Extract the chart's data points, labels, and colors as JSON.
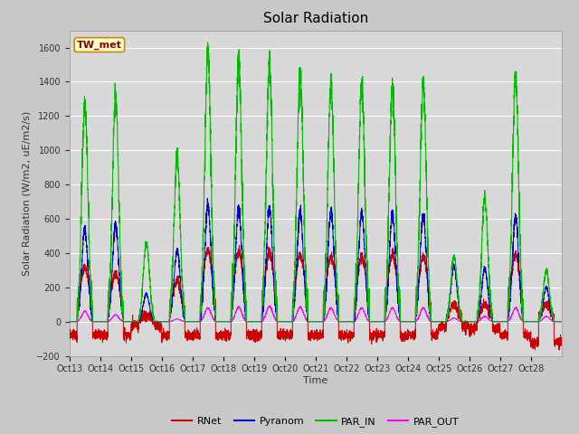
{
  "title": "Solar Radiation",
  "ylabel": "Solar Radiation (W/m2, uE/m2/s)",
  "xlabel": "Time",
  "ylim": [
    -200,
    1700
  ],
  "yticks": [
    -200,
    0,
    200,
    400,
    600,
    800,
    1000,
    1200,
    1400,
    1600
  ],
  "xtick_labels": [
    "Oct 13",
    "Oct 14",
    "Oct 15",
    "Oct 16",
    "Oct 17",
    "Oct 18",
    "Oct 19",
    "Oct 20",
    "Oct 21",
    "Oct 22",
    "Oct 23",
    "Oct 24",
    "Oct 25",
    "Oct 26",
    "Oct 27",
    "Oct 28"
  ],
  "legend_labels": [
    "RNet",
    "Pyranom",
    "PAR_IN",
    "PAR_OUT"
  ],
  "colors": {
    "RNet": "#cc0000",
    "Pyranom": "#0000cc",
    "PAR_IN": "#00bb00",
    "PAR_OUT": "#ff00ff"
  },
  "annotation_text": "TW_met",
  "annotation_bg": "#ffffcc",
  "annotation_border": "#cc8800",
  "fig_bg": "#c8c8c8",
  "plot_bg": "#d8d8d8",
  "grid_color": "#ffffff",
  "title_fontsize": 11,
  "label_fontsize": 8,
  "tick_fontsize": 7,
  "par_in_peaks": [
    1270,
    1310,
    460,
    960,
    1580,
    1530,
    1500,
    1460,
    1390,
    1390,
    1360,
    1390,
    380,
    720,
    1430,
    300
  ],
  "pyranom_peaks": [
    540,
    570,
    160,
    420,
    680,
    660,
    660,
    640,
    650,
    640,
    630,
    620,
    320,
    310,
    610,
    200
  ],
  "rnet_peaks": [
    320,
    280,
    40,
    240,
    420,
    410,
    400,
    390,
    380,
    380,
    390,
    380,
    100,
    100,
    390,
    100
  ],
  "par_out_peaks": [
    60,
    40,
    15,
    15,
    80,
    85,
    90,
    85,
    80,
    80,
    80,
    80,
    20,
    30,
    80,
    30
  ],
  "rnet_night": [
    -80,
    -80,
    -20,
    -80,
    -80,
    -80,
    -80,
    -80,
    -80,
    -80,
    -80,
    -80,
    -30,
    -40,
    -80,
    -120
  ]
}
